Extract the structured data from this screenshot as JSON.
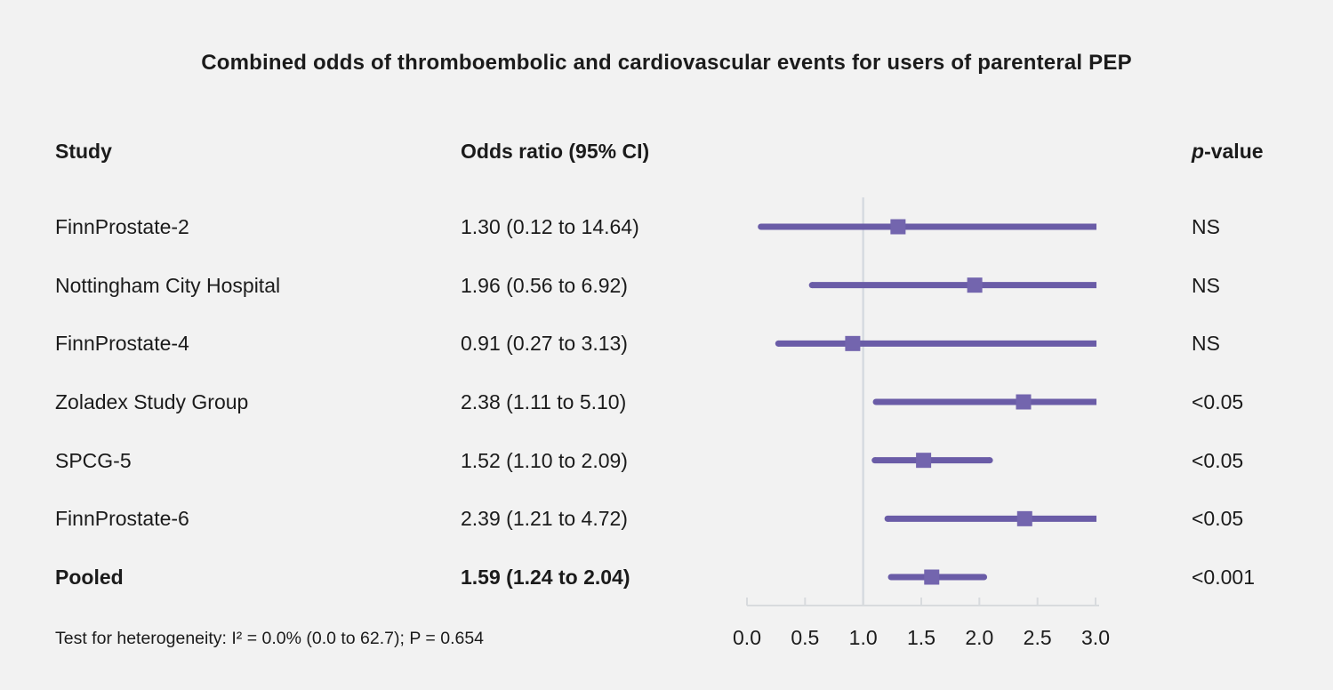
{
  "title": "Combined odds of thromboembolic and cardiovascular events for users of parenteral PEP",
  "columns": {
    "study": "Study",
    "odds_ratio": "Odds ratio (95% CI)",
    "p_italic": "p",
    "p_rest": "-value"
  },
  "rows": [
    {
      "study": "FinnProstate-2",
      "or_ci": "1.30 (0.12 to 14.64)",
      "p": "NS",
      "bold": false
    },
    {
      "study": "Nottingham City Hospital",
      "or_ci": "1.96 (0.56 to 6.92)",
      "p": "NS",
      "bold": false
    },
    {
      "study": "FinnProstate-4",
      "or_ci": "0.91 (0.27 to 3.13)",
      "p": "NS",
      "bold": false
    },
    {
      "study": "Zoladex Study Group",
      "or_ci": "2.38 (1.11 to 5.10)",
      "p": "<0.05",
      "bold": false
    },
    {
      "study": "SPCG-5",
      "or_ci": "1.52 (1.10 to 2.09)",
      "p": "<0.05",
      "bold": false
    },
    {
      "study": "FinnProstate-6",
      "or_ci": "2.39 (1.21 to 4.72)",
      "p": "<0.05",
      "bold": false
    },
    {
      "study": "Pooled",
      "or_ci": "1.59 (1.24 to 2.04)",
      "p": "<0.001",
      "bold": true
    }
  ],
  "footer": "Test for heterogeneity: I² = 0.0% (0.0 to 62.7); P = 0.654",
  "chart_data": {
    "type": "scatter",
    "subtype": "forest-plot",
    "title": "Combined odds of thromboembolic and cardiovascular events for users of parenteral PEP",
    "xlabel": "",
    "x_range": [
      0.0,
      3.0
    ],
    "x_ticks": [
      0.0,
      0.5,
      1.0,
      1.5,
      2.0,
      2.5,
      3.0
    ],
    "reference_line_x": 1.0,
    "grid": false,
    "legend": false,
    "series": [
      {
        "study": "FinnProstate-2",
        "odds_ratio": 1.3,
        "ci_low": 0.12,
        "ci_high": 14.64,
        "p_value": "NS",
        "pooled": false
      },
      {
        "study": "Nottingham City Hospital",
        "odds_ratio": 1.96,
        "ci_low": 0.56,
        "ci_high": 6.92,
        "p_value": "NS",
        "pooled": false
      },
      {
        "study": "FinnProstate-4",
        "odds_ratio": 0.91,
        "ci_low": 0.27,
        "ci_high": 3.13,
        "p_value": "NS",
        "pooled": false
      },
      {
        "study": "Zoladex Study Group",
        "odds_ratio": 2.38,
        "ci_low": 1.11,
        "ci_high": 5.1,
        "p_value": "<0.05",
        "pooled": false
      },
      {
        "study": "SPCG-5",
        "odds_ratio": 1.52,
        "ci_low": 1.1,
        "ci_high": 2.09,
        "p_value": "<0.05",
        "pooled": false
      },
      {
        "study": "FinnProstate-6",
        "odds_ratio": 2.39,
        "ci_low": 1.21,
        "ci_high": 4.72,
        "p_value": "<0.05",
        "pooled": false
      },
      {
        "study": "Pooled",
        "odds_ratio": 1.59,
        "ci_low": 1.24,
        "ci_high": 2.04,
        "p_value": "<0.001",
        "pooled": true
      }
    ],
    "heterogeneity_note": "Test for heterogeneity: I² = 0.0% (0.0 to 62.7); P = 0.654"
  },
  "colors": {
    "background": "#f2f2f2",
    "text": "#1b1b1b",
    "ci_line": "#6a5ca7",
    "marker": "#7365ae",
    "reference_line": "#d6dbe0",
    "axis": "#d8dbde"
  }
}
